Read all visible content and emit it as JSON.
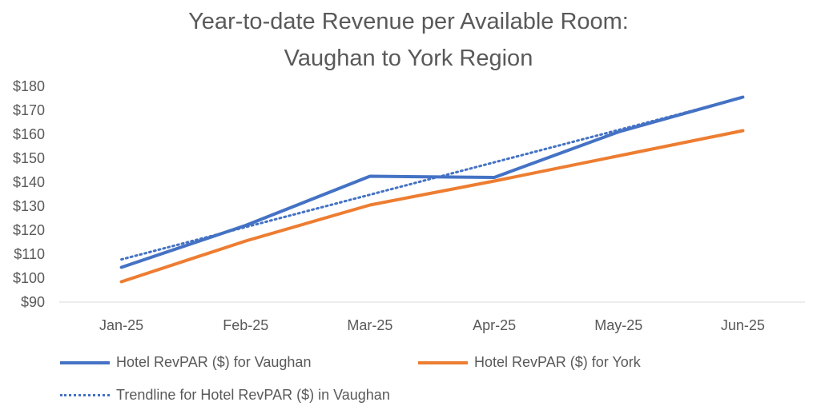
{
  "chart_data": {
    "type": "line",
    "title": [
      "Year-to-date Revenue per Available Room:",
      "Vaughan to York Region"
    ],
    "categories": [
      "Jan-25",
      "Feb-25",
      "Mar-25",
      "Apr-25",
      "May-25",
      "Jun-25"
    ],
    "y_ticks": [
      "$90",
      "$100",
      "$110",
      "$120",
      "$130",
      "$140",
      "$150",
      "$160",
      "$170",
      "$180"
    ],
    "ylim": [
      90,
      180
    ],
    "grid": false,
    "legend_position": "bottom",
    "series": [
      {
        "name": "Hotel RevPAR ($) for Vaughan",
        "values": [
          104.5,
          122,
          142.5,
          142,
          161,
          175.5
        ],
        "color": "#4472C4",
        "style": "solid"
      },
      {
        "name": "Hotel RevPAR ($) for York",
        "values": [
          98.5,
          115.5,
          130.5,
          140.5,
          151,
          161.5
        ],
        "color": "#ED7D31",
        "style": "solid"
      },
      {
        "name": "Trendline for Hotel RevPAR ($) in Vaughan",
        "values": [
          107.8,
          121.3,
          134.8,
          148.3,
          161.8,
          175.3
        ],
        "color": "#4472C4",
        "style": "dotted"
      }
    ]
  }
}
